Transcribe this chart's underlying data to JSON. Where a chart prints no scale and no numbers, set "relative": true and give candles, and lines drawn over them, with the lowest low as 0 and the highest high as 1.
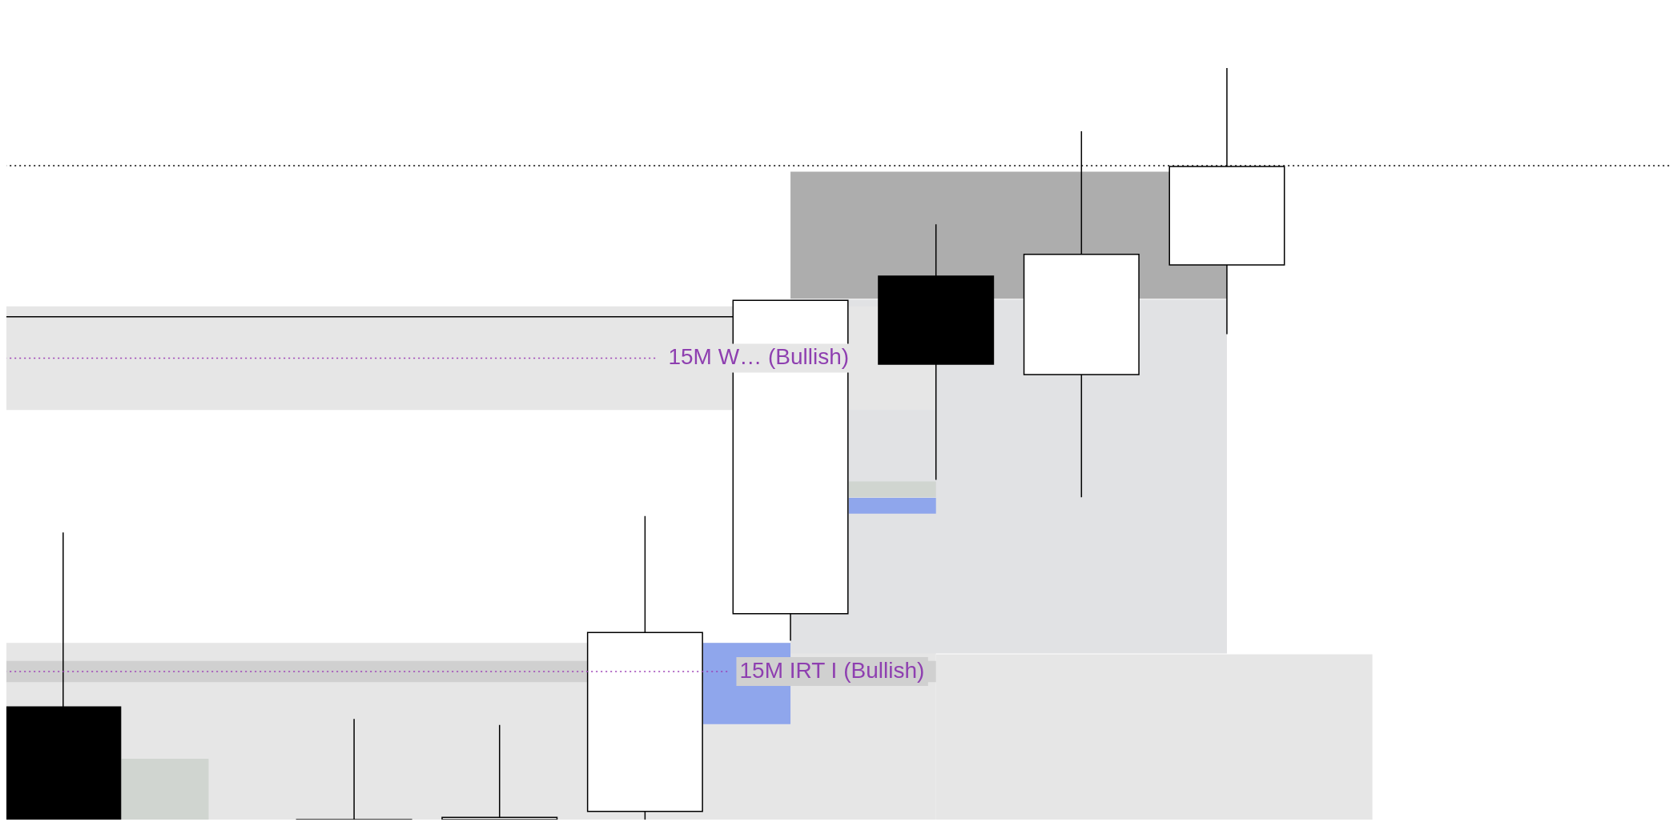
{
  "chart_data": {
    "type": "candlestick",
    "relative": true,
    "categories": [
      null,
      null,
      null,
      null,
      null,
      null,
      null,
      null,
      null,
      null,
      null,
      null
    ],
    "ohlc": [
      [
        0.15,
        0.382,
        0,
        0
      ],
      null,
      [
        0,
        0.134,
        0,
        0
      ],
      [
        0,
        0.126,
        0,
        0.003
      ],
      [
        0.011,
        0.404,
        0,
        0.249
      ],
      [
        0.274,
        0.691,
        0.238,
        0.691
      ],
      [
        0.723,
        0.792,
        0.452,
        0.606
      ],
      [
        0.592,
        0.916,
        0.429,
        0.752
      ],
      [
        0.738,
        1,
        0.646,
        0.869
      ],
      null,
      null,
      null
    ],
    "bands": [
      {
        "axis": "y",
        "from": 0,
        "to": 0.235,
        "color": "#e6e6e6"
      },
      {
        "axis": "y",
        "from": 0,
        "to": 0.22,
        "color": "#e6e6e6"
      },
      {
        "axis": "y",
        "from": 0.221,
        "to": 0.692,
        "color": "#e1e2e4"
      },
      {
        "axis": "y",
        "from": 0.545,
        "to": 0.683,
        "color": "#e6e6e6",
        "label": "15M W… (Bullish)"
      },
      {
        "axis": "y",
        "from": 0.183,
        "to": 0.211,
        "color": "#d0d0d0",
        "label": "15M IRT I (Bullish)"
      },
      {
        "axis": "y",
        "from": 0.693,
        "to": 0.862,
        "color": "#adadad"
      },
      {
        "axis": "y",
        "from": 0.127,
        "to": 0.235,
        "color": "#8fa6ec"
      },
      {
        "axis": "y",
        "from": 0.429,
        "to": 0.45,
        "color": "#d0d5d0"
      },
      {
        "axis": "y",
        "from": 0.407,
        "to": 0.428,
        "color": "#8fa6ec"
      },
      {
        "axis": "y",
        "from": 0,
        "to": 0.081,
        "color": "#d0d5d0"
      }
    ],
    "ref_lines": [
      {
        "axis": "y",
        "value": 0.87,
        "color": "#000000",
        "line_style": "dotted"
      },
      {
        "axis": "y",
        "value": 0.669,
        "color": "#000000",
        "line_style": "solid"
      }
    ]
  }
}
